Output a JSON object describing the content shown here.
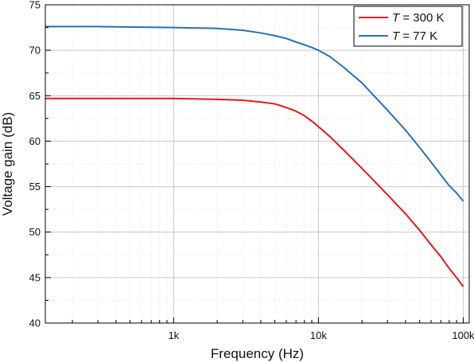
{
  "chart_data": {
    "type": "line",
    "xlabel": "Frequency (Hz)",
    "ylabel": "Voltage gain (dB)",
    "x_scale": "log",
    "xlim": [
      130,
      110000
    ],
    "ylim": [
      40,
      75
    ],
    "x_ticks": [
      {
        "value": 1000,
        "label": "1k"
      },
      {
        "value": 10000,
        "label": "10k"
      },
      {
        "value": 100000,
        "label": "100k"
      }
    ],
    "y_ticks": [
      {
        "value": 40,
        "label": "40"
      },
      {
        "value": 45,
        "label": "45"
      },
      {
        "value": 50,
        "label": "50"
      },
      {
        "value": 55,
        "label": "55"
      },
      {
        "value": 60,
        "label": "60"
      },
      {
        "value": 65,
        "label": "65"
      },
      {
        "value": 70,
        "label": "70"
      },
      {
        "value": 75,
        "label": "75"
      }
    ],
    "grid": true,
    "legend_position": "top-right",
    "series": [
      {
        "name_italic": "T",
        "name_rest": " = 300 K",
        "color": "#e31a1c",
        "x": [
          130,
          300,
          1000,
          2000,
          3000,
          4000,
          5000,
          6000,
          7000,
          8000,
          9000,
          10000,
          12000,
          15000,
          20000,
          30000,
          40000,
          50000,
          60000,
          70000,
          80000,
          90000,
          100000
        ],
        "y": [
          64.7,
          64.7,
          64.7,
          64.6,
          64.5,
          64.3,
          64.1,
          63.7,
          63.3,
          62.8,
          62.2,
          61.6,
          60.5,
          59.0,
          57.0,
          54.1,
          52.0,
          50.2,
          48.6,
          47.3,
          46.0,
          45.0,
          44.0
        ]
      },
      {
        "name_italic": "T",
        "name_rest": " = 77 K",
        "color": "#2c6fb0",
        "x": [
          130,
          300,
          1000,
          2000,
          3000,
          4000,
          5000,
          6000,
          7000,
          8000,
          9000,
          10000,
          12000,
          15000,
          20000,
          30000,
          40000,
          50000,
          60000,
          70000,
          80000,
          90000,
          100000
        ],
        "y": [
          72.6,
          72.6,
          72.5,
          72.4,
          72.2,
          71.9,
          71.6,
          71.3,
          70.9,
          70.6,
          70.3,
          70.0,
          69.3,
          68.1,
          66.4,
          63.4,
          61.2,
          59.3,
          57.7,
          56.3,
          55.1,
          54.3,
          53.4
        ]
      }
    ]
  }
}
